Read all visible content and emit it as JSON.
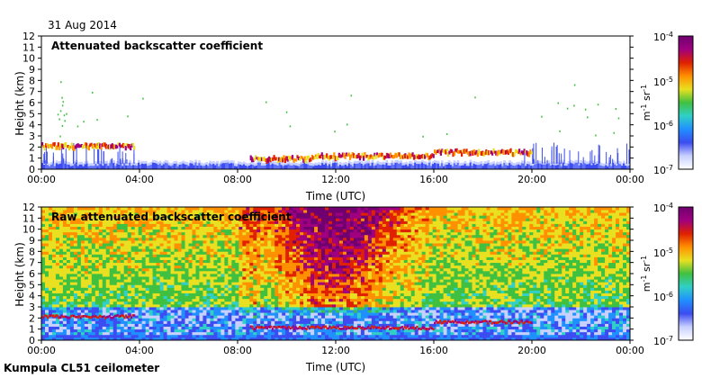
{
  "figure": {
    "date": "31 Aug 2014",
    "footer": "Kumpula CL51 ceilometer"
  },
  "colors": {
    "colormap": [
      "#ffffff",
      "#c8d0ff",
      "#3c4cf0",
      "#2090ff",
      "#30d0c8",
      "#40c040",
      "#e8e020",
      "#ff9000",
      "#e02000",
      "#a00080",
      "#700070"
    ]
  },
  "chart_data": [
    {
      "type": "heatmap",
      "title": "Attenuated backscatter coefficient",
      "xlabel": "Time (UTC)",
      "ylabel": "Height (km)",
      "xlim": [
        "00:00",
        "00:00"
      ],
      "ylim": [
        0,
        12
      ],
      "x_ticks": [
        "00:00",
        "04:00",
        "08:00",
        "12:00",
        "16:00",
        "20:00",
        "00:00"
      ],
      "y_ticks": [
        0,
        1,
        2,
        3,
        4,
        5,
        6,
        7,
        8,
        9,
        10,
        11,
        12
      ],
      "colorbar": {
        "label_base": "m",
        "label_exp1": "-1",
        "label_mid": " sr",
        "label_exp2": "-1",
        "scale": "log",
        "range": [
          1e-07,
          0.0001
        ],
        "tick_labels": [
          {
            "base": "10",
            "exp": "-7"
          },
          {
            "base": "10",
            "exp": "-6"
          },
          {
            "base": "10",
            "exp": "-5"
          },
          {
            "base": "10",
            "exp": "-4"
          }
        ]
      },
      "features": [
        {
          "kind": "cloud-base-layer",
          "hours": [
            0,
            3.8
          ],
          "height_km": 2.1
        },
        {
          "kind": "cloud-base-layer",
          "hours": [
            8.5,
            11
          ],
          "height_km": 0.95
        },
        {
          "kind": "cloud-base-layer",
          "hours": [
            11,
            16
          ],
          "height_km": 1.2
        },
        {
          "kind": "cloud-base-layer",
          "hours": [
            16,
            20
          ],
          "height_km": 1.55
        },
        {
          "kind": "aerosol-layer",
          "hours": [
            0,
            24
          ],
          "height_km": [
            0,
            0.6
          ]
        }
      ]
    },
    {
      "type": "heatmap",
      "title": "Raw attenuated backscatter coefficient",
      "xlabel": "Time (UTC)",
      "ylabel": "Height (km)",
      "xlim": [
        "00:00",
        "00:00"
      ],
      "ylim": [
        0,
        12
      ],
      "x_ticks": [
        "00:00",
        "04:00",
        "08:00",
        "12:00",
        "16:00",
        "20:00",
        "00:00"
      ],
      "y_ticks": [
        0,
        1,
        2,
        3,
        4,
        5,
        6,
        7,
        8,
        9,
        10,
        11,
        12
      ],
      "colorbar": {
        "label_base": "m",
        "label_exp1": "-1",
        "label_mid": " sr",
        "label_exp2": "-1",
        "scale": "log",
        "range": [
          1e-07,
          0.0001
        ],
        "tick_labels": [
          {
            "base": "10",
            "exp": "-7"
          },
          {
            "base": "10",
            "exp": "-6"
          },
          {
            "base": "10",
            "exp": "-5"
          },
          {
            "base": "10",
            "exp": "-4"
          }
        ]
      },
      "features": [
        {
          "kind": "cloud-base-layer",
          "hours": [
            0,
            3.8
          ],
          "height_km": 2.1
        },
        {
          "kind": "cloud-base-layer",
          "hours": [
            8.5,
            16
          ],
          "height_km": 1.1
        },
        {
          "kind": "cloud-base-layer",
          "hours": [
            16,
            20
          ],
          "height_km": 1.6
        },
        {
          "kind": "noise-high-signal",
          "hours": [
            10,
            15
          ],
          "height_km": [
            2,
            12
          ]
        }
      ]
    }
  ]
}
